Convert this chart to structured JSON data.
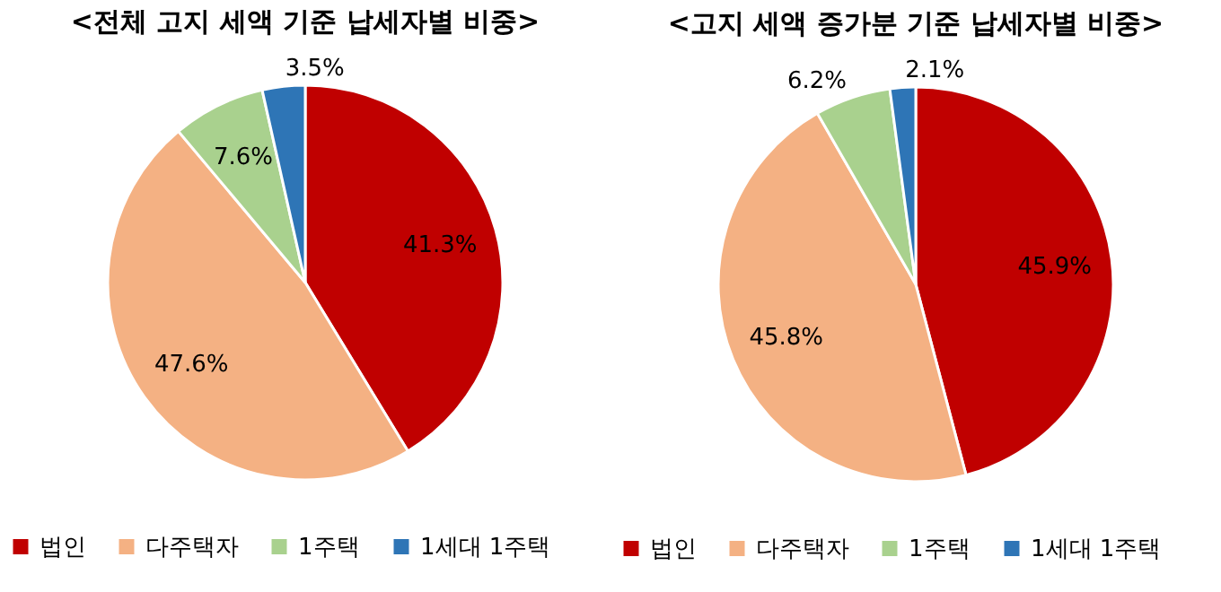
{
  "chart_data": [
    {
      "type": "pie",
      "title": "<전체 고지 세액 기준 납세자별 비중>",
      "categories": [
        "법인",
        "다주택자",
        "1주택",
        "1세대 1주택"
      ],
      "values": [
        41.3,
        47.6,
        7.6,
        3.5
      ],
      "colors": [
        "#c00000",
        "#f4b183",
        "#a9d18e",
        "#2e75b6"
      ],
      "value_labels": [
        "41.3%",
        "47.6%",
        "7.6%",
        "3.5%"
      ],
      "legend": "bottom"
    },
    {
      "type": "pie",
      "title": "<고지 세액 증가분 기준 납세자별 비중>",
      "categories": [
        "법인",
        "다주택자",
        "1주택",
        "1세대 1주택"
      ],
      "values": [
        45.9,
        45.8,
        6.2,
        2.1
      ],
      "colors": [
        "#c00000",
        "#f4b183",
        "#a9d18e",
        "#2e75b6"
      ],
      "value_labels": [
        "45.9%",
        "45.8%",
        "6.2%",
        "2.1%"
      ],
      "legend": "bottom"
    }
  ]
}
